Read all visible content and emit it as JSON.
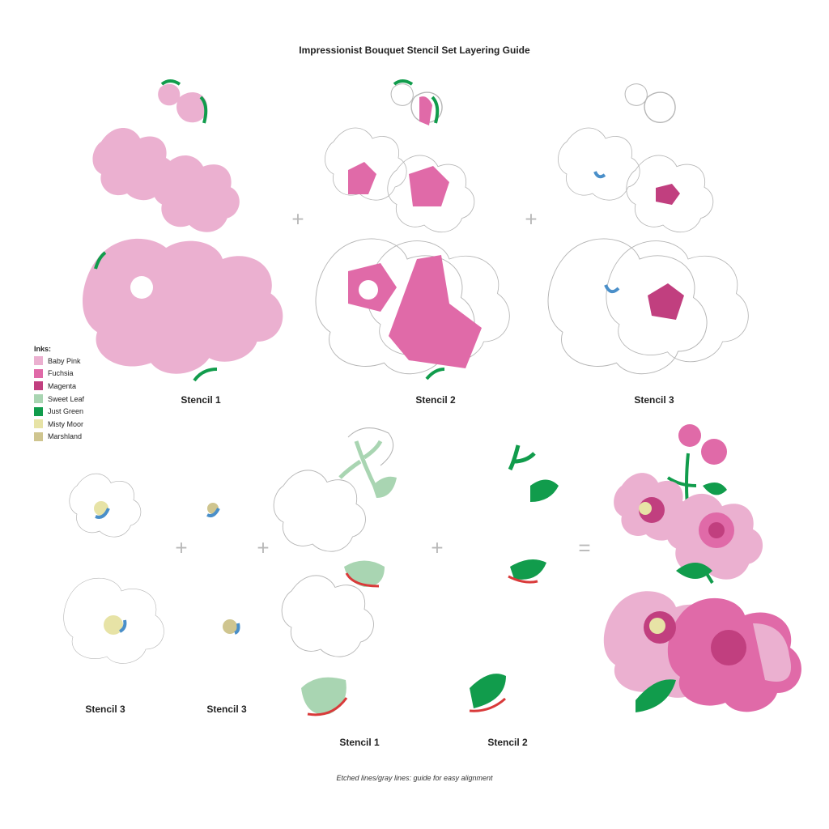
{
  "title": "Impressionist Bouquet Stencil Set Layering Guide",
  "legend": {
    "heading": "Inks:",
    "items": [
      {
        "label": "Baby Pink",
        "color": "#ebb0d0"
      },
      {
        "label": "Fuchsia",
        "color": "#e06aa8"
      },
      {
        "label": "Magenta",
        "color": "#c13f7f"
      },
      {
        "label": "Sweet Leaf",
        "color": "#a9d5b2"
      },
      {
        "label": "Just Green",
        "color": "#119c4c"
      },
      {
        "label": "Misty Moor",
        "color": "#e7e3a6"
      },
      {
        "label": "Marshland",
        "color": "#cfc58f"
      }
    ]
  },
  "top_row": {
    "labels": [
      "Stencil 1",
      "Stencil 2",
      "Stencil 3"
    ],
    "operators": [
      "+",
      "+"
    ]
  },
  "bottom_row": {
    "labels": [
      "Stencil 3",
      "Stencil 3",
      "Stencil 1",
      "Stencil 2"
    ],
    "operators": [
      "+",
      "+",
      "+",
      "="
    ]
  },
  "note": "Etched lines/gray lines: guide for easy alignment",
  "accents": {
    "outline": "#b5b5b5",
    "red": "#d93a3a",
    "blue": "#4a8fc9"
  }
}
